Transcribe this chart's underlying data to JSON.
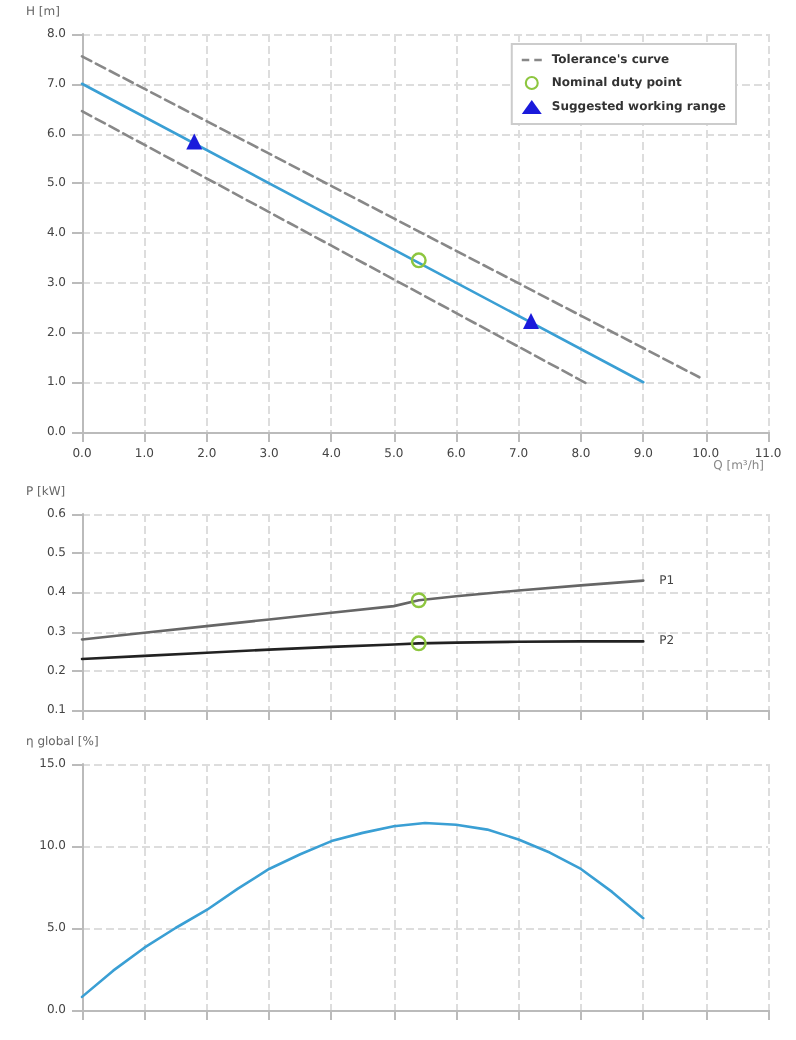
{
  "chart_data": [
    {
      "type": "line",
      "xlabel": "Q [m³/h]",
      "ylabel": "H [m]",
      "xlim": [
        0,
        11
      ],
      "ylim": [
        0,
        8
      ],
      "xticks": [
        {
          "value": 0,
          "label": "0.0"
        },
        {
          "value": 1,
          "label": "1.0"
        },
        {
          "value": 2,
          "label": "2.0"
        },
        {
          "value": 3,
          "label": "3.0"
        },
        {
          "value": 4,
          "label": "4.0"
        },
        {
          "value": 5,
          "label": "5.0"
        },
        {
          "value": 6,
          "label": "6.0"
        },
        {
          "value": 7,
          "label": "7.0"
        },
        {
          "value": 8,
          "label": "8.0"
        },
        {
          "value": 9,
          "label": "9.0"
        },
        {
          "value": 10,
          "label": "10.0"
        },
        {
          "value": 11,
          "label": "11.0"
        }
      ],
      "yticks": [
        {
          "value": 0,
          "label": "0.0"
        },
        {
          "value": 1,
          "label": "1.0"
        },
        {
          "value": 2,
          "label": "2.0"
        },
        {
          "value": 3,
          "label": "3.0"
        },
        {
          "value": 4,
          "label": "4.0"
        },
        {
          "value": 5,
          "label": "5.0"
        },
        {
          "value": 6,
          "label": "6.0"
        },
        {
          "value": 7,
          "label": "7.0"
        },
        {
          "value": 8,
          "label": "8.0"
        }
      ],
      "grid": true,
      "legend": "top right",
      "series": [
        {
          "color": "#3a9fd4",
          "x": [
            0,
            9
          ],
          "values": [
            7.0,
            1.0
          ]
        },
        {
          "name": "Tolerance's curve",
          "color": "#888888",
          "line_style": "dashed",
          "x": [
            0,
            9.9
          ],
          "values": [
            7.55,
            1.1
          ]
        },
        {
          "color": "#888888",
          "line_style": "dashed",
          "x": [
            0,
            8.1
          ],
          "values": [
            6.45,
            0.97
          ]
        },
        {
          "type": "scatter",
          "name": "Nominal duty point",
          "color": "#8dc63f",
          "marker": "circle",
          "x": [
            5.4
          ],
          "values": [
            3.45
          ]
        },
        {
          "type": "scatter",
          "name": "Suggested working range",
          "color": "#1a1adb",
          "marker": "triangle",
          "x": [
            1.8,
            7.2
          ],
          "values": [
            5.84,
            2.23
          ]
        }
      ]
    },
    {
      "type": "line",
      "ylabel": "P [kW]",
      "xlim": [
        0,
        11
      ],
      "ylim": [
        0.1,
        0.6
      ],
      "tick_labels": "y",
      "xticks": [
        {
          "value": 0,
          "label": null
        },
        {
          "value": 1,
          "label": null
        },
        {
          "value": 2,
          "label": null
        },
        {
          "value": 3,
          "label": null
        },
        {
          "value": 4,
          "label": null
        },
        {
          "value": 5,
          "label": null
        },
        {
          "value": 6,
          "label": null
        },
        {
          "value": 7,
          "label": null
        },
        {
          "value": 8,
          "label": null
        },
        {
          "value": 9,
          "label": null
        },
        {
          "value": 10,
          "label": null
        },
        {
          "value": 11,
          "label": null
        }
      ],
      "yticks": [
        0.1,
        0.2,
        0.3,
        0.4,
        0.5,
        0.6
      ],
      "grid": true,
      "series": [
        {
          "name": "P1",
          "color": "#666666",
          "x": [
            0,
            1,
            2,
            3,
            4,
            5,
            5.4,
            6,
            7,
            8,
            9
          ],
          "values": [
            0.28,
            0.297,
            0.314,
            0.331,
            0.348,
            0.365,
            0.38,
            0.39,
            0.405,
            0.418,
            0.43
          ]
        },
        {
          "name": "P2",
          "color": "#222222",
          "x": [
            0,
            1,
            2,
            3,
            4,
            5,
            5.4,
            6,
            7,
            8,
            9
          ],
          "values": [
            0.23,
            0.238,
            0.246,
            0.254,
            0.261,
            0.267,
            0.27,
            0.272,
            0.274,
            0.275,
            0.275
          ]
        },
        {
          "type": "scatter",
          "color": "#8dc63f",
          "marker": "circle",
          "x": [
            5.4,
            5.4
          ],
          "values": [
            0.38,
            0.27
          ]
        }
      ]
    },
    {
      "type": "line",
      "ylabel": "η global [%]",
      "xlim": [
        0,
        11
      ],
      "ylim": [
        0,
        15
      ],
      "tick_labels": "y",
      "xticks": [
        {
          "value": 0,
          "label": null
        },
        {
          "value": 1,
          "label": null
        },
        {
          "value": 2,
          "label": null
        },
        {
          "value": 3,
          "label": null
        },
        {
          "value": 4,
          "label": null
        },
        {
          "value": 5,
          "label": null
        },
        {
          "value": 6,
          "label": null
        },
        {
          "value": 7,
          "label": null
        },
        {
          "value": 8,
          "label": null
        },
        {
          "value": 9,
          "label": null
        },
        {
          "value": 10,
          "label": null
        },
        {
          "value": 11,
          "label": null
        }
      ],
      "yticks": [
        {
          "value": 0,
          "label": "0.0"
        },
        {
          "value": 5,
          "label": "5.0"
        },
        {
          "value": 10,
          "label": "10.0"
        },
        {
          "value": 15,
          "label": "15.0"
        }
      ],
      "grid": true,
      "series": [
        {
          "color": "#3a9fd4",
          "x": [
            0,
            0.5,
            1,
            1.5,
            2,
            2.5,
            3,
            3.5,
            4,
            4.5,
            5,
            5.5,
            6,
            6.5,
            7,
            7.5,
            8,
            8.5,
            9
          ],
          "values": [
            0.8,
            2.4,
            3.8,
            5.0,
            6.1,
            7.4,
            8.6,
            9.5,
            10.3,
            10.8,
            11.2,
            11.4,
            11.3,
            11.0,
            10.4,
            9.6,
            8.6,
            7.2,
            5.6
          ]
        }
      ]
    }
  ]
}
